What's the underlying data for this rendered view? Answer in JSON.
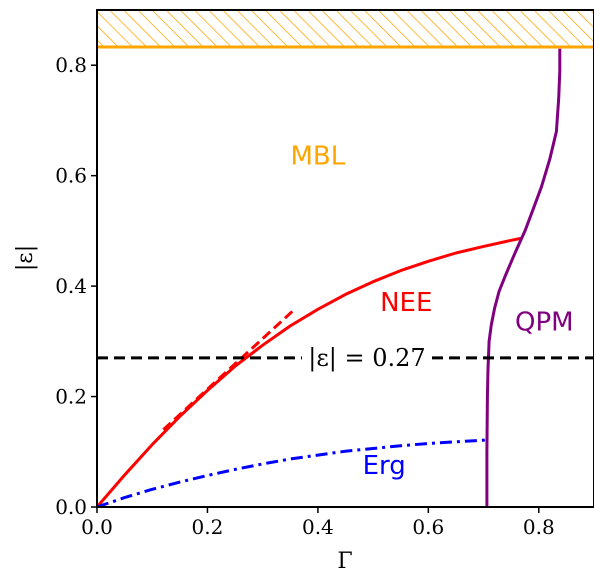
{
  "chart_data": {
    "type": "line",
    "xlabel": "Γ",
    "ylabel": "|ε|",
    "xlim": [
      0.0,
      0.9
    ],
    "ylim": [
      0.0,
      0.9
    ],
    "xticks": [
      0.0,
      0.2,
      0.4,
      0.6,
      0.8
    ],
    "yticks": [
      0.0,
      0.2,
      0.4,
      0.6,
      0.8
    ],
    "xtick_labels": [
      "0.0",
      "0.2",
      "0.4",
      "0.6",
      "0.8"
    ],
    "ytick_labels": [
      "0.0",
      "0.2",
      "0.4",
      "0.6",
      "0.8"
    ],
    "grid": false,
    "legend": "none",
    "regions": [
      {
        "label": "MBL",
        "color": "#FFA500",
        "x": 0.4,
        "y": 0.62
      },
      {
        "label": "NEE",
        "color": "#FF0000",
        "x": 0.56,
        "y": 0.355
      },
      {
        "label": "QPM",
        "color": "#800080",
        "x": 0.81,
        "y": 0.32
      },
      {
        "label": "Erg",
        "color": "#0000FF",
        "x": 0.52,
        "y": 0.06
      }
    ],
    "hatched_band": {
      "y_from": 0.833,
      "y_to": 0.9,
      "color": "#FFA500"
    },
    "threshold_line": {
      "y": 0.27,
      "label": "|ε| = 0.27",
      "style": "dashed",
      "color": "#000000"
    },
    "series": [
      {
        "color": "#FF0000",
        "style": "solid",
        "x": [
          0.0,
          0.05,
          0.1,
          0.15,
          0.2,
          0.25,
          0.3,
          0.35,
          0.4,
          0.45,
          0.5,
          0.55,
          0.6,
          0.65,
          0.7,
          0.75,
          0.77
        ],
        "y": [
          0.0,
          0.058,
          0.113,
          0.164,
          0.211,
          0.255,
          0.293,
          0.328,
          0.358,
          0.385,
          0.408,
          0.428,
          0.445,
          0.46,
          0.472,
          0.483,
          0.487
        ]
      },
      {
        "color": "#FF0000",
        "style": "dashed",
        "x": [
          0.12,
          0.36
        ],
        "y": [
          0.14,
          0.36
        ]
      },
      {
        "color": "#0000FF",
        "style": "dashdot",
        "x": [
          0.0,
          0.05,
          0.1,
          0.15,
          0.2,
          0.25,
          0.3,
          0.35,
          0.4,
          0.45,
          0.5,
          0.55,
          0.6,
          0.65,
          0.7,
          0.705
        ],
        "y": [
          0.0,
          0.017,
          0.032,
          0.045,
          0.057,
          0.068,
          0.078,
          0.087,
          0.094,
          0.101,
          0.106,
          0.111,
          0.115,
          0.118,
          0.121,
          0.122
        ]
      },
      {
        "color": "#800080",
        "style": "solid",
        "x": [
          0.706,
          0.706,
          0.707,
          0.708,
          0.71,
          0.714,
          0.72,
          0.728,
          0.74,
          0.757,
          0.775,
          0.79,
          0.805,
          0.82,
          0.832,
          0.836,
          0.838,
          0.838
        ],
        "y": [
          0.0,
          0.1,
          0.2,
          0.25,
          0.3,
          0.33,
          0.36,
          0.39,
          0.42,
          0.46,
          0.5,
          0.54,
          0.58,
          0.63,
          0.68,
          0.74,
          0.79,
          0.83
        ]
      }
    ]
  }
}
